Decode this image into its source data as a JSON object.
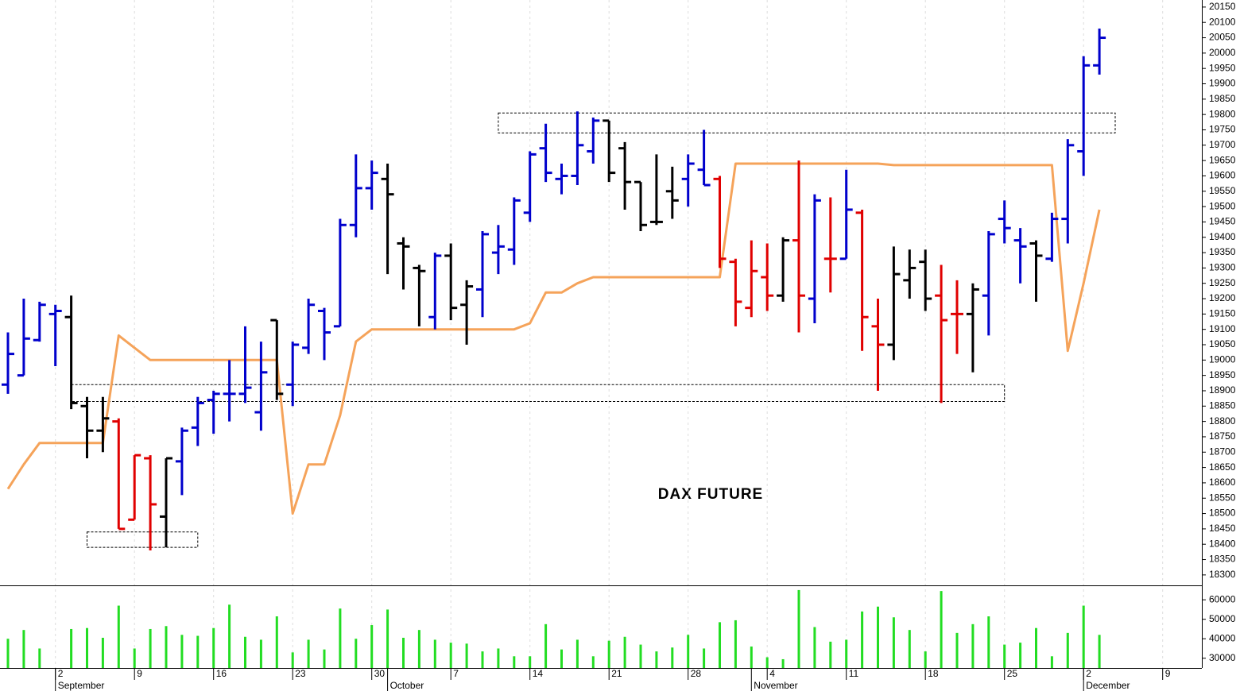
{
  "chart_data": {
    "type": "ohlc",
    "title": "DAX FUTURE",
    "categories": [
      null,
      null,
      null,
      "2",
      null,
      null,
      null,
      null,
      "9",
      null,
      null,
      null,
      null,
      "16",
      null,
      null,
      null,
      null,
      "23",
      null,
      null,
      null,
      null,
      "30",
      null,
      null,
      null,
      null,
      "7",
      null,
      null,
      null,
      null,
      "14",
      null,
      null,
      null,
      null,
      "21",
      null,
      null,
      null,
      null,
      "28",
      null,
      null,
      null,
      null,
      "4",
      null,
      null,
      null,
      null,
      "11",
      null,
      null,
      null,
      null,
      "18",
      null,
      null,
      null,
      null,
      "25",
      null,
      null,
      null,
      null,
      "2",
      null,
      null,
      null,
      null,
      "9"
    ],
    "months": [
      null,
      null,
      null,
      "September",
      null,
      null,
      null,
      null,
      null,
      null,
      null,
      null,
      null,
      null,
      null,
      null,
      null,
      null,
      null,
      null,
      null,
      null,
      null,
      null,
      "October",
      null,
      null,
      null,
      null,
      null,
      null,
      null,
      null,
      null,
      null,
      null,
      null,
      null,
      null,
      null,
      null,
      null,
      null,
      null,
      null,
      null,
      null,
      "November",
      null,
      null,
      null,
      null,
      null,
      null,
      null,
      null,
      null,
      null,
      null,
      null,
      null,
      null,
      null,
      null,
      null,
      null,
      null,
      null,
      "December",
      null,
      null,
      null,
      null,
      null
    ],
    "open": [
      18920,
      18950,
      19065,
      19150,
      19140,
      18850,
      18770,
      18800,
      18480,
      18680,
      18490,
      18670,
      18780,
      18870,
      18890,
      18890,
      18830,
      19130,
      18920,
      19040,
      19160,
      19110,
      19440,
      19560,
      19590,
      19380,
      19300,
      19140,
      19340,
      19180,
      19230,
      19350,
      19360,
      19480,
      19690,
      19590,
      19600,
      19680,
      19780,
      19690,
      19580,
      19450,
      19550,
      19590,
      19620,
      19590,
      19320,
      19170,
      19270,
      19210,
      19390,
      19200,
      19330,
      19330,
      19480,
      19110,
      19050,
      19260,
      19320,
      19210,
      19150,
      19150,
      19210,
      19460,
      19390,
      19380,
      19330,
      19460,
      19680,
      19960,
      null,
      null,
      null,
      null
    ],
    "high": [
      19090,
      19200,
      19190,
      19180,
      19210,
      18880,
      18880,
      18810,
      18690,
      18690,
      18680,
      18780,
      18880,
      18900,
      19000,
      19110,
      19060,
      19130,
      19060,
      19200,
      19170,
      19460,
      19670,
      19650,
      19640,
      19400,
      19310,
      19350,
      19380,
      19260,
      19420,
      19440,
      19530,
      19680,
      19770,
      19640,
      19810,
      19790,
      19780,
      19710,
      19580,
      19670,
      19630,
      19670,
      19750,
      19600,
      19330,
      19390,
      19380,
      19400,
      19650,
      19540,
      19530,
      19620,
      19490,
      19200,
      19370,
      19360,
      19360,
      19310,
      19260,
      19250,
      19420,
      19520,
      19430,
      19390,
      19480,
      19720,
      19990,
      20080,
      null,
      null,
      null,
      null
    ],
    "low": [
      18890,
      18950,
      19060,
      18980,
      18840,
      18680,
      18700,
      18450,
      18480,
      18380,
      18390,
      18560,
      18720,
      18760,
      18800,
      18860,
      18770,
      18870,
      18850,
      19020,
      19000,
      19110,
      19400,
      19490,
      19280,
      19230,
      19110,
      19100,
      19130,
      19050,
      19140,
      19280,
      19310,
      19450,
      19580,
      19540,
      19570,
      19640,
      19580,
      19490,
      19420,
      19440,
      19460,
      19500,
      19570,
      19300,
      19110,
      19140,
      19160,
      19190,
      19090,
      19120,
      19220,
      19330,
      19030,
      18900,
      19000,
      19200,
      19160,
      18860,
      19020,
      18960,
      19080,
      19380,
      19250,
      19190,
      19320,
      19380,
      19600,
      19930,
      null,
      null,
      null,
      null
    ],
    "close": [
      19020,
      19070,
      19180,
      19160,
      18860,
      18770,
      18810,
      18450,
      18690,
      18530,
      18680,
      18770,
      18860,
      18890,
      18890,
      18910,
      18960,
      18890,
      19050,
      19180,
      19090,
      19440,
      19560,
      19610,
      19540,
      19370,
      19290,
      19340,
      19170,
      19240,
      19410,
      19370,
      19520,
      19670,
      19610,
      19600,
      19700,
      19780,
      19610,
      19580,
      19440,
      19450,
      19520,
      19640,
      19570,
      19330,
      19190,
      19290,
      19210,
      19390,
      19210,
      19520,
      19330,
      19490,
      19140,
      19050,
      19280,
      19300,
      19200,
      19130,
      19150,
      19230,
      19410,
      19430,
      19370,
      19340,
      19460,
      19700,
      19960,
      20050,
      null,
      null,
      null,
      null
    ],
    "bar_colors": [
      "#0000cc",
      "#0000cc",
      "#0000cc",
      "#0000cc",
      "#000000",
      "#000000",
      "#000000",
      "#e00000",
      "#e00000",
      "#e00000",
      "#000000",
      "#0000cc",
      "#0000cc",
      "#0000cc",
      "#0000cc",
      "#0000cc",
      "#0000cc",
      "#000000",
      "#0000cc",
      "#0000cc",
      "#0000cc",
      "#0000cc",
      "#0000cc",
      "#0000cc",
      "#000000",
      "#000000",
      "#000000",
      "#0000cc",
      "#000000",
      "#000000",
      "#0000cc",
      "#0000cc",
      "#0000cc",
      "#0000cc",
      "#0000cc",
      "#0000cc",
      "#0000cc",
      "#0000cc",
      "#000000",
      "#000000",
      "#000000",
      "#000000",
      "#000000",
      "#0000cc",
      "#0000cc",
      "#e00000",
      "#e00000",
      "#e00000",
      "#e00000",
      "#000000",
      "#e00000",
      "#0000cc",
      "#e00000",
      "#0000cc",
      "#e00000",
      "#e00000",
      "#000000",
      "#000000",
      "#000000",
      "#e00000",
      "#e00000",
      "#000000",
      "#0000cc",
      "#0000cc",
      "#0000cc",
      "#000000",
      "#0000cc",
      "#0000cc",
      "#0000cc",
      "#0000cc",
      null,
      null,
      null,
      null
    ],
    "line": {
      "color": "#f5a35a",
      "values": [
        18580,
        18660,
        18730,
        18730,
        18730,
        18730,
        18730,
        19080,
        19040,
        19000,
        19000,
        19000,
        19000,
        19000,
        19000,
        19000,
        19000,
        19000,
        18500,
        18660,
        18660,
        18820,
        19060,
        19100,
        19100,
        19100,
        19100,
        19100,
        19100,
        19100,
        19100,
        19100,
        19100,
        19120,
        19220,
        19220,
        19250,
        19270,
        19270,
        19270,
        19270,
        19270,
        19270,
        19270,
        19270,
        19270,
        19640,
        19640,
        19640,
        19640,
        19640,
        19640,
        19640,
        19640,
        19640,
        19640,
        19635,
        19635,
        19635,
        19635,
        19635,
        19635,
        19635,
        19635,
        19635,
        19635,
        19635,
        19030,
        19250,
        19490,
        null,
        null,
        null,
        null
      ]
    },
    "zones": [
      {
        "start": 5,
        "end": 12,
        "low": 18390,
        "high": 18440
      },
      {
        "start": 4,
        "end": 63,
        "low": 18865,
        "high": 18920
      },
      {
        "start": 31,
        "end": 70,
        "low": 19740,
        "high": 19805
      }
    ],
    "ylim": [
      18266,
      20173
    ],
    "yticks": [
      18300,
      18350,
      18400,
      18450,
      18500,
      18550,
      18600,
      18650,
      18700,
      18750,
      18800,
      18850,
      18900,
      18950,
      19000,
      19050,
      19100,
      19150,
      19200,
      19250,
      19300,
      19350,
      19400,
      19450,
      19500,
      19550,
      19600,
      19650,
      19700,
      19750,
      19800,
      19850,
      19900,
      19950,
      20000,
      20050,
      20100,
      20150
    ],
    "grid": true,
    "volume": {
      "type": "bar",
      "color": "#22dd22",
      "values": [
        40000,
        44500,
        35000,
        null,
        45000,
        45500,
        40500,
        57000,
        35000,
        45000,
        46500,
        42000,
        41500,
        45500,
        57500,
        41000,
        39500,
        51500,
        33000,
        39500,
        34500,
        55500,
        40000,
        47000,
        55000,
        40500,
        44500,
        39500,
        38000,
        37500,
        33500,
        35000,
        31000,
        31000,
        47500,
        34500,
        39500,
        31000,
        39000,
        41000,
        37000,
        33500,
        35500,
        42000,
        35000,
        48500,
        49500,
        36000,
        30500,
        29500,
        65000,
        46000,
        38500,
        39500,
        54000,
        56500,
        51000,
        44500,
        33500,
        64500,
        43000,
        47500,
        51500,
        37000,
        38000,
        45500,
        31000,
        43000,
        57000,
        42000,
        null,
        null,
        null,
        null
      ],
      "ylim": [
        25000,
        67000
      ],
      "yticks": [
        30000,
        40000,
        50000,
        60000
      ]
    }
  }
}
